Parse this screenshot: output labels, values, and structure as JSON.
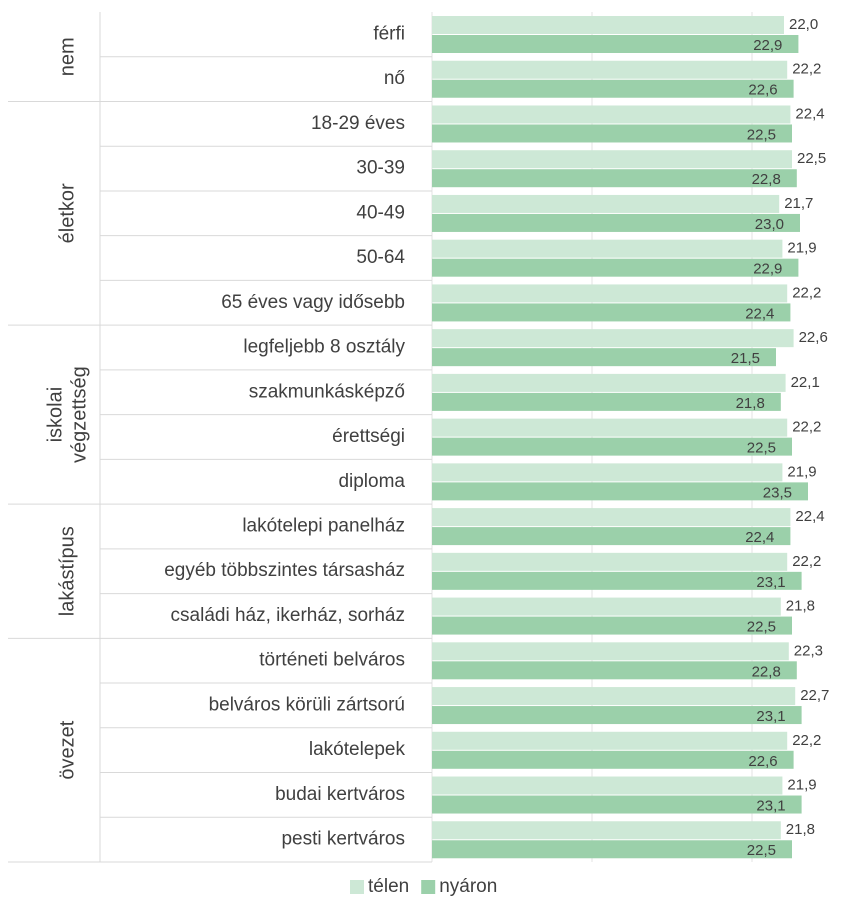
{
  "chart_data": {
    "type": "bar",
    "orientation": "horizontal",
    "groups": [
      {
        "name": [
          "nem"
        ],
        "categories": [
          "férfi",
          "nő"
        ]
      },
      {
        "name": [
          "életkor"
        ],
        "categories": [
          "18-29 éves",
          "30-39",
          "40-49",
          "50-64",
          "65 éves vagy idősebb"
        ]
      },
      {
        "name": [
          "iskolai",
          "végzettség"
        ],
        "categories": [
          "legfeljebb 8 osztály",
          "szakmunkásképző",
          "érettségi",
          "diploma"
        ]
      },
      {
        "name": [
          "lakástípus"
        ],
        "categories": [
          "lakótelepi panelház",
          "egyéb többszintes társasház",
          "családi ház, ikerház, sorház"
        ]
      },
      {
        "name": [
          "övezet"
        ],
        "categories": [
          "történeti belváros",
          "belváros körüli zártsorú",
          "lakótelepek",
          "budai kertváros",
          "pesti kertváros"
        ]
      }
    ],
    "series": [
      {
        "name": "télen",
        "color": "#cde8d6",
        "values": [
          22.0,
          22.2,
          22.4,
          22.5,
          21.7,
          21.9,
          22.2,
          22.6,
          22.1,
          22.2,
          21.9,
          22.4,
          22.2,
          21.8,
          22.3,
          22.7,
          22.2,
          21.9,
          21.8
        ],
        "value_labels": [
          "22,0",
          "22,2",
          "22,4",
          "22,5",
          "21,7",
          "21,9",
          "22,2",
          "22,6",
          "22,1",
          "22,2",
          "21,9",
          "22,4",
          "22,2",
          "21,8",
          "22,3",
          "22,7",
          "22,2",
          "21,9",
          "21,8"
        ]
      },
      {
        "name": "nyáron",
        "color": "#9bd0aa",
        "values": [
          22.9,
          22.6,
          22.5,
          22.8,
          23.0,
          22.9,
          22.4,
          21.5,
          21.8,
          22.5,
          23.5,
          22.4,
          23.1,
          22.5,
          22.8,
          23.1,
          22.6,
          23.1,
          22.5
        ],
        "value_labels": [
          "22,9",
          "22,6",
          "22,5",
          "22,8",
          "23,0",
          "22,9",
          "22,4",
          "21,5",
          "21,8",
          "22,5",
          "23,5",
          "22,4",
          "23,1",
          "22,5",
          "22,8",
          "23,1",
          "22,6",
          "23,1",
          "22,5"
        ]
      }
    ],
    "xlim": [
      0,
      25
    ],
    "xticks": [
      0,
      10,
      20
    ],
    "grid": true,
    "legend": "bottom"
  }
}
